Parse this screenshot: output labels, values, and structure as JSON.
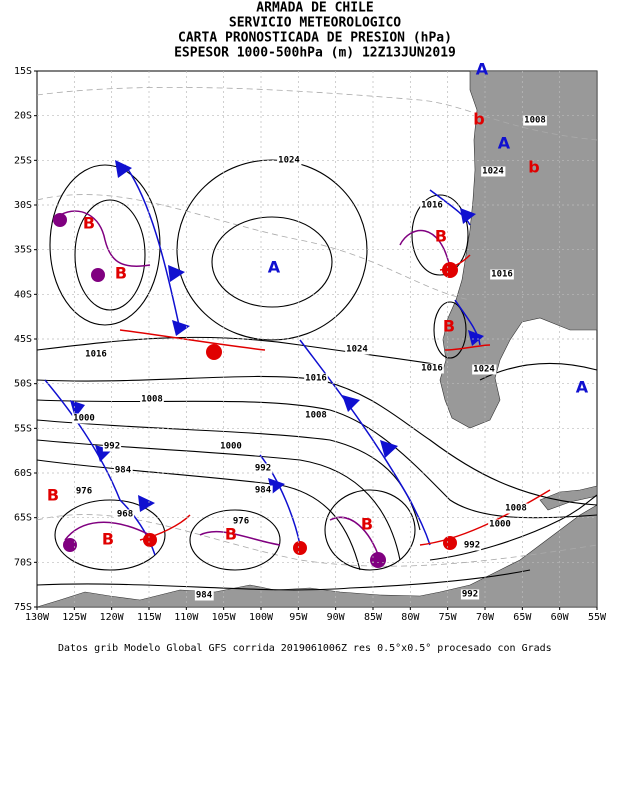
{
  "header": {
    "lines": [
      "ARMADA DE CHILE",
      "SERVICIO METEOROLOGICO",
      "CARTA PRONOSTICADA DE PRESION (hPa)",
      "ESPESOR 1000-500hPa (m) 12Z13JUN2019"
    ]
  },
  "axes": {
    "lat_labels": [
      "15S",
      "20S",
      "25S",
      "30S",
      "35S",
      "40S",
      "45S",
      "50S",
      "55S",
      "60S",
      "65S",
      "70S",
      "75S"
    ],
    "lon_labels": [
      "130W",
      "125W",
      "120W",
      "115W",
      "110W",
      "105W",
      "100W",
      "95W",
      "90W",
      "85W",
      "80W",
      "75W",
      "70W",
      "65W",
      "60W",
      "55W"
    ]
  },
  "isobar_labels": [
    "1008",
    "1024",
    "1016",
    "1016",
    "1024",
    "1024",
    "1016",
    "1016",
    "1008",
    "1008",
    "1000",
    "1016",
    "1024",
    "1000",
    "992",
    "992",
    "984",
    "984",
    "976",
    "968",
    "976",
    "1000",
    "1008",
    "992",
    "984",
    "992"
  ],
  "centers": [
    "A",
    "b",
    "A",
    "b",
    "A",
    "B",
    "B",
    "B",
    "B",
    "A",
    "B",
    "B",
    "B",
    "B"
  ],
  "footer": "Datos grib Modelo Global GFS corrida 2019061006Z res 0.5°x0.5° procesado con Grads"
}
